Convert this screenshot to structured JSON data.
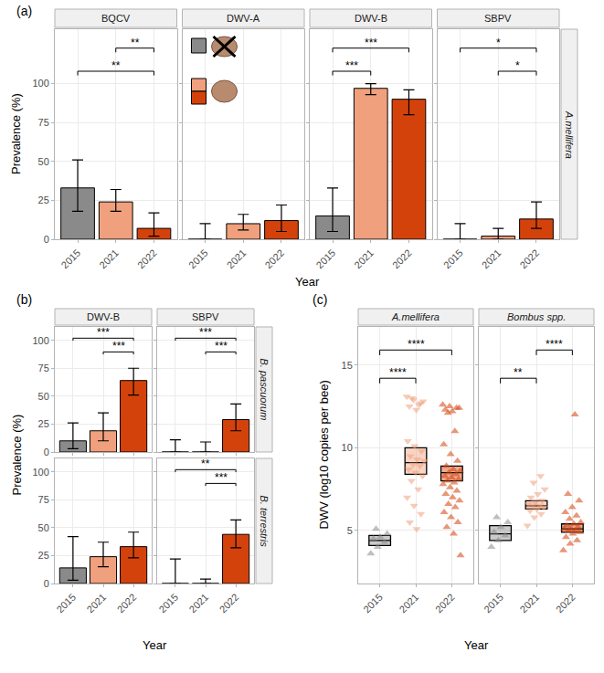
{
  "chart_data": [
    {
      "type": "bar",
      "panel_label": "(a)",
      "x_title": "Year",
      "y_title": "Prevalence (%)",
      "categories": [
        "2015",
        "2021",
        "2022"
      ],
      "colors": [
        "#8a8a8a",
        "#f0a07c",
        "#d4420c"
      ],
      "ylim": [
        0,
        135
      ],
      "yticks": [
        0,
        25,
        50,
        75,
        100
      ],
      "grid": true,
      "columns": [
        "BQCV",
        "DWV-A",
        "DWV-B",
        "SBPV"
      ],
      "rows": [
        {
          "row_label": "A.mellifera",
          "facets": [
            {
              "values": [
                33,
                24,
                7
              ],
              "ci_low": [
                18,
                18,
                2
              ],
              "ci_high": [
                51,
                32,
                17
              ],
              "brackets": [
                {
                  "from": "2015",
                  "to": "2022",
                  "label": "**"
                },
                {
                  "from": "2021",
                  "to": "2022",
                  "label": "**"
                }
              ]
            },
            {
              "values": [
                0,
                10,
                12
              ],
              "ci_low": [
                0,
                6,
                5
              ],
              "ci_high": [
                10,
                16,
                22
              ],
              "brackets": []
            },
            {
              "values": [
                15,
                97,
                90
              ],
              "ci_low": [
                5,
                93,
                80
              ],
              "ci_high": [
                33,
                100,
                96
              ],
              "brackets": [
                {
                  "from": "2015",
                  "to": "2021",
                  "label": "***"
                },
                {
                  "from": "2015",
                  "to": "2022",
                  "label": "***"
                }
              ]
            },
            {
              "values": [
                0,
                2,
                13
              ],
              "ci_low": [
                0,
                0,
                7
              ],
              "ci_high": [
                10,
                7,
                24
              ],
              "brackets": [
                {
                  "from": "2021",
                  "to": "2022",
                  "label": "*"
                },
                {
                  "from": "2015",
                  "to": "2022",
                  "label": "*"
                }
              ]
            }
          ]
        }
      ]
    },
    {
      "type": "bar",
      "panel_label": "(b)",
      "x_title": "Year",
      "y_title": "Prevalence (%)",
      "categories": [
        "2015",
        "2021",
        "2022"
      ],
      "colors": [
        "#8a8a8a",
        "#f0a07c",
        "#d4420c"
      ],
      "ylim": [
        0,
        112
      ],
      "yticks": [
        0,
        25,
        50,
        75,
        100
      ],
      "grid": true,
      "columns": [
        "DWV-B",
        "SBPV"
      ],
      "rows": [
        {
          "row_label": "B. pascuorum",
          "facets": [
            {
              "values": [
                10,
                19,
                64
              ],
              "ci_low": [
                3,
                10,
                51
              ],
              "ci_high": [
                26,
                35,
                75
              ],
              "brackets": [
                {
                  "from": "2021",
                  "to": "2022",
                  "label": "***"
                },
                {
                  "from": "2015",
                  "to": "2022",
                  "label": "***"
                }
              ]
            },
            {
              "values": [
                0,
                0,
                29
              ],
              "ci_low": [
                0,
                0,
                19
              ],
              "ci_high": [
                11,
                9,
                43
              ],
              "brackets": [
                {
                  "from": "2021",
                  "to": "2022",
                  "label": "***"
                },
                {
                  "from": "2015",
                  "to": "2022",
                  "label": "***"
                }
              ]
            }
          ]
        },
        {
          "row_label": "B. terrestris",
          "facets": [
            {
              "values": [
                14,
                24,
                33
              ],
              "ci_low": [
                3,
                15,
                23
              ],
              "ci_high": [
                42,
                37,
                46
              ],
              "brackets": []
            },
            {
              "values": [
                0,
                0,
                44
              ],
              "ci_low": [
                0,
                0,
                32
              ],
              "ci_high": [
                22,
                4,
                57
              ],
              "brackets": [
                {
                  "from": "2021",
                  "to": "2022",
                  "label": "***"
                },
                {
                  "from": "2015",
                  "to": "2022",
                  "label": "**"
                }
              ]
            }
          ]
        }
      ]
    },
    {
      "type": "box",
      "panel_label": "(c)",
      "x_title": "Year",
      "y_title": "DWV (log10 copies per bee)",
      "categories": [
        "2015",
        "2021",
        "2022"
      ],
      "ylim": [
        1.8,
        17.3
      ],
      "yticks": [
        5,
        10,
        15
      ],
      "grid": true,
      "columns": [
        "A.mellifera",
        "Bombus spp."
      ],
      "rows": [
        {
          "facets": [
            {
              "series": [
                {
                  "name": "2015",
                  "color": "#8a8a8a",
                  "marker": "triangle-up",
                  "q1": 4.1,
                  "median": 4.4,
                  "q3": 4.7,
                  "points": [
                    3.6,
                    4.0,
                    4.3,
                    4.5,
                    4.6,
                    4.8,
                    5.1
                  ]
                },
                {
                  "name": "2021",
                  "color": "#f0a07c",
                  "marker": "triangle-down",
                  "q1": 8.4,
                  "median": 9.1,
                  "q3": 10.0,
                  "points": [
                    13.1,
                    12.9,
                    12.7,
                    12.5,
                    12.3,
                    12.8,
                    13.0,
                    12.6,
                    10.4,
                    10.1,
                    9.8,
                    9.5,
                    9.3,
                    9.2,
                    9.0,
                    8.9,
                    8.7,
                    8.5,
                    8.3,
                    8.0,
                    7.5,
                    7.0,
                    6.5,
                    6.0,
                    5.5,
                    5.1
                  ]
                },
                {
                  "name": "2022",
                  "color": "#d4420c",
                  "marker": "triangle-up",
                  "q1": 8.0,
                  "median": 8.5,
                  "q3": 8.9,
                  "points": [
                    12.6,
                    12.5,
                    12.4,
                    12.3,
                    12.2,
                    12.4,
                    12.1,
                    11.0,
                    10.2,
                    9.6,
                    9.2,
                    8.9,
                    8.7,
                    8.6,
                    8.5,
                    8.4,
                    8.3,
                    8.2,
                    8.1,
                    8.0,
                    7.9,
                    7.8,
                    7.6,
                    7.4,
                    7.2,
                    7.0,
                    6.8,
                    6.6,
                    6.4,
                    6.1,
                    5.8,
                    5.5,
                    5.2,
                    4.8,
                    3.5
                  ]
                }
              ],
              "brackets": [
                {
                  "from": "2015",
                  "to": "2021",
                  "label": "****"
                },
                {
                  "from": "2015",
                  "to": "2022",
                  "label": "****"
                }
              ]
            },
            {
              "series": [
                {
                  "name": "2015",
                  "color": "#8a8a8a",
                  "marker": "triangle-up",
                  "q1": 4.4,
                  "median": 4.8,
                  "q3": 5.3,
                  "points": [
                    4.0,
                    4.4,
                    4.7,
                    4.9,
                    5.2,
                    5.5,
                    5.8
                  ]
                },
                {
                  "name": "2021",
                  "color": "#f0a07c",
                  "marker": "triangle-down",
                  "q1": 6.3,
                  "median": 6.5,
                  "q3": 6.8,
                  "points": [
                    5.3,
                    5.8,
                    6.0,
                    6.2,
                    6.3,
                    6.4,
                    6.5,
                    6.5,
                    6.6,
                    6.7,
                    6.8,
                    7.0,
                    7.2,
                    7.5,
                    7.9,
                    8.3
                  ]
                },
                {
                  "name": "2022",
                  "color": "#d4420c",
                  "marker": "triangle-up",
                  "q1": 4.9,
                  "median": 5.1,
                  "q3": 5.4,
                  "points": [
                    3.8,
                    4.2,
                    4.4,
                    4.6,
                    4.8,
                    4.9,
                    5.0,
                    5.0,
                    5.1,
                    5.1,
                    5.2,
                    5.3,
                    5.4,
                    5.5,
                    5.7,
                    5.9,
                    6.1,
                    6.4,
                    6.8,
                    7.2,
                    12.0
                  ]
                }
              ],
              "brackets": [
                {
                  "from": "2015",
                  "to": "2021",
                  "label": "**"
                },
                {
                  "from": "2021",
                  "to": "2022",
                  "label": "****"
                }
              ]
            }
          ]
        }
      ]
    }
  ]
}
